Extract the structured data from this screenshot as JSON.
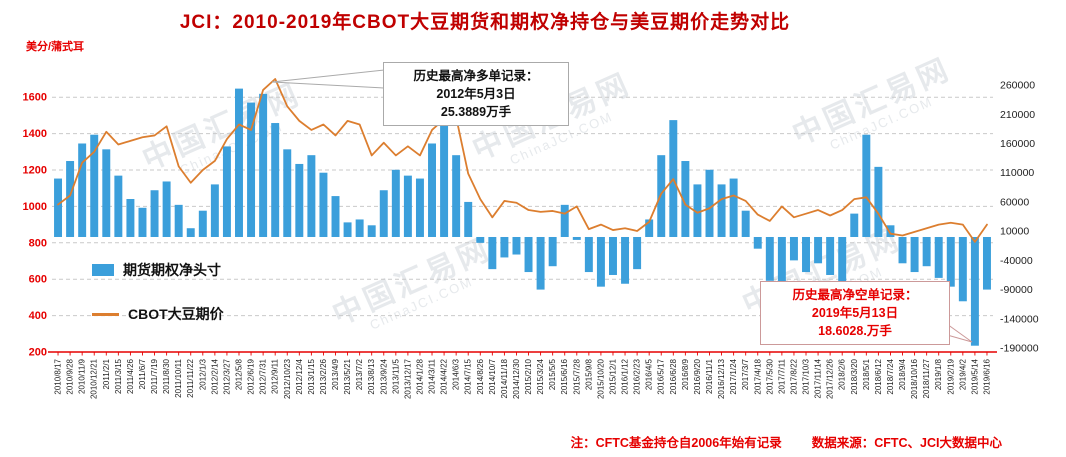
{
  "title": "JCI：2010-2019年CBOT大豆期货和期权净持仓与美豆期价走势对比",
  "left_axis_unit": "美分/蒲式耳",
  "legend": {
    "bars": "期货期权净头寸",
    "line": "CBOT大豆期价"
  },
  "annotations": {
    "max_long": {
      "line1": "历史最高净多单记录：",
      "line2": "2012年5月3日",
      "line3": "25.3889万手"
    },
    "max_short": {
      "line1": "历史最高净空单记录：",
      "line2": "2019年5月13日",
      "line3": "18.6028.万手"
    }
  },
  "footnote": {
    "note": "注：CFTC基金持仓自2006年始有记录",
    "source": "数据来源：CFTC、JCI大数据中心"
  },
  "watermark": {
    "line1": "中国汇易网",
    "line2": "ChinaJCI.COM"
  },
  "colors": {
    "bar": "#3B9FDB",
    "line": "#DC7E2F",
    "axis_red": "#E60000",
    "title_red": "#C00000",
    "grid": "#C9C9C9",
    "tick_text": "#222222",
    "annotation_border": "#AAAAAA"
  },
  "chart_data": {
    "type": "bar",
    "subtype": "bar+line dual axis",
    "title": "JCI：2010-2019年CBOT大豆期货和期权净持仓与美豆期价走势对比",
    "grid": "horizontal dashed",
    "legend_position": "inside-left",
    "categories": [
      "2010/8/17",
      "2010/9/28",
      "2010/11/9",
      "2010/12/21",
      "2011/2/1",
      "2011/3/15",
      "2011/4/26",
      "2011/6/7",
      "2011/7/19",
      "2011/8/30",
      "2011/10/11",
      "2011/11/22",
      "2012/1/3",
      "2012/2/14",
      "2012/3/27",
      "2012/5/8",
      "2012/6/19",
      "2012/7/31",
      "2012/9/11",
      "2012/10/23",
      "2012/12/4",
      "2013/1/15",
      "2013/2/26",
      "2013/4/9",
      "2013/5/21",
      "2013/7/2",
      "2013/8/13",
      "2013/9/24",
      "2013/11/5",
      "2013/12/17",
      "2014/1/28",
      "2014/3/11",
      "2014/4/22",
      "2014/6/3",
      "2014/7/15",
      "2014/8/26",
      "2014/10/7",
      "2014/11/18",
      "2014/12/30",
      "2015/2/10",
      "2015/3/24",
      "2015/5/5",
      "2015/6/16",
      "2015/7/28",
      "2015/9/8",
      "2015/10/20",
      "2015/12/1",
      "2016/1/12",
      "2016/2/23",
      "2016/4/5",
      "2016/5/17",
      "2016/6/28",
      "2016/8/9",
      "2016/9/20",
      "2016/11/1",
      "2016/12/13",
      "2017/1/24",
      "2017/3/7",
      "2017/4/18",
      "2017/5/30",
      "2017/7/11",
      "2017/8/22",
      "2017/10/3",
      "2017/11/14",
      "2017/12/26",
      "2018/2/6",
      "2018/3/20",
      "2018/5/1",
      "2018/6/12",
      "2018/7/24",
      "2018/9/4",
      "2018/10/16",
      "2018/11/27",
      "2019/1/8",
      "2019/2/19",
      "2019/4/2",
      "2019/5/14",
      "2019/6/16"
    ],
    "series": [
      {
        "name": "期货期权净头寸",
        "type": "bar",
        "axis": "right",
        "values": [
          100000,
          130000,
          160000,
          175000,
          150000,
          105000,
          65000,
          50000,
          80000,
          95000,
          55000,
          15000,
          45000,
          90000,
          155000,
          253889,
          230000,
          245000,
          195000,
          150000,
          125000,
          140000,
          110000,
          70000,
          25000,
          30000,
          20000,
          80000,
          115000,
          105000,
          100000,
          160000,
          190000,
          140000,
          60000,
          -10000,
          -55000,
          -35000,
          -30000,
          -60000,
          -90000,
          -50000,
          55000,
          -5000,
          -60000,
          -85000,
          -65000,
          -80000,
          -55000,
          30000,
          140000,
          200000,
          130000,
          90000,
          115000,
          90000,
          100000,
          45000,
          -20000,
          -75000,
          -95000,
          -40000,
          -60000,
          -45000,
          -65000,
          -90000,
          40000,
          175000,
          120000,
          20000,
          -45000,
          -60000,
          -50000,
          -70000,
          -85000,
          -110000,
          -186028,
          -90000
        ]
      },
      {
        "name": "CBOT大豆期价",
        "type": "line",
        "axis": "left",
        "values": [
          1010,
          1060,
          1240,
          1300,
          1410,
          1340,
          1360,
          1380,
          1390,
          1440,
          1220,
          1130,
          1200,
          1250,
          1370,
          1450,
          1420,
          1640,
          1700,
          1550,
          1470,
          1420,
          1450,
          1390,
          1470,
          1450,
          1280,
          1350,
          1280,
          1330,
          1280,
          1420,
          1480,
          1490,
          1180,
          1040,
          940,
          1030,
          1020,
          980,
          970,
          975,
          960,
          1000,
          875,
          900,
          870,
          880,
          865,
          915,
          1070,
          1150,
          1010,
          965,
          990,
          1040,
          1060,
          1030,
          955,
          920,
          1000,
          940,
          960,
          980,
          950,
          980,
          1040,
          1050,
          960,
          850,
          840,
          860,
          880,
          900,
          910,
          900,
          805,
          900
        ]
      }
    ],
    "left_axis": {
      "label": "美分/蒲式耳",
      "ticks": [
        1600,
        1400,
        1200,
        1000,
        800,
        600,
        400,
        200
      ],
      "range": [
        200,
        1722
      ]
    },
    "right_axis": {
      "ticks": [
        260000,
        210000,
        160000,
        110000,
        60000,
        10000,
        -40000,
        -90000,
        -140000,
        -190000
      ],
      "range": [
        -196800,
        277200
      ]
    },
    "extrema": {
      "max_long_record": {
        "date": "2012年5月3日",
        "value_label": "25.3889万手",
        "value": 253889
      },
      "max_short_record": {
        "date": "2019年5月13日",
        "value_label": "18.6028.万手",
        "value": -186028
      }
    }
  }
}
